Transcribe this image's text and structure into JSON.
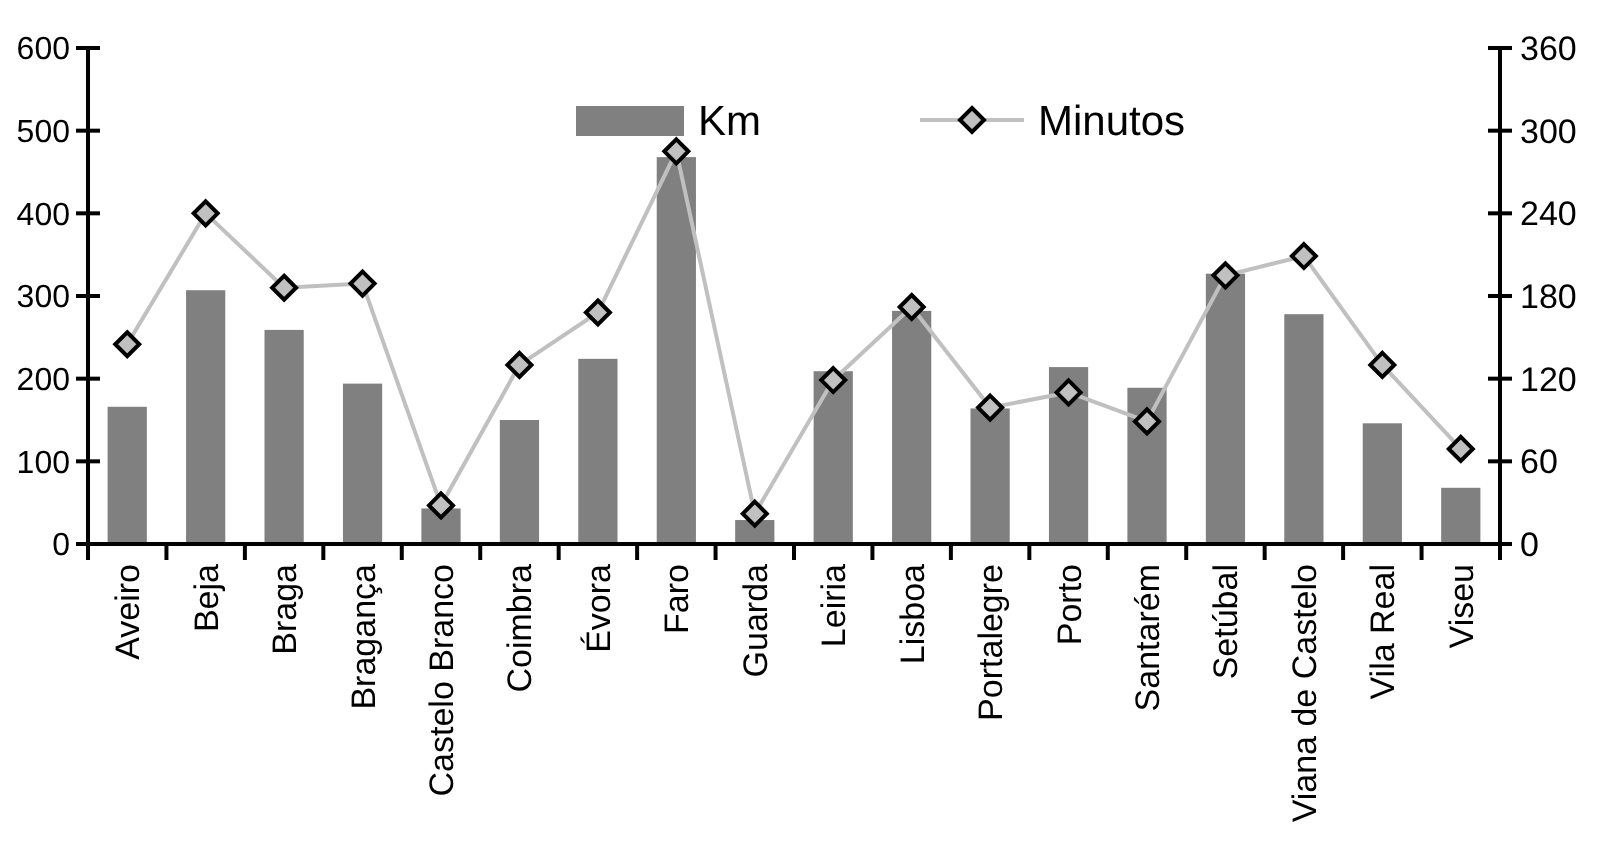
{
  "chart_data": {
    "type": "bar",
    "categories": [
      "Aveiro",
      "Beja",
      "Braga",
      "Bragança",
      "Castelo Branco",
      "Coimbra",
      "Évora",
      "Faro",
      "Guarda",
      "Leiria",
      "Lisboa",
      "Portalegre",
      "Porto",
      "Santarém",
      "Setúbal",
      "Viana de Castelo",
      "Vila Real",
      "Viseu"
    ],
    "series": [
      {
        "name": "Km",
        "color": "#808080",
        "values": [
          166,
          307,
          259,
          194,
          43,
          150,
          224,
          468,
          29,
          209,
          282,
          164,
          214,
          189,
          327,
          278,
          146,
          68
        ]
      },
      {
        "name": "Minutos",
        "color": "#c0c0c0",
        "type": "line",
        "axis": "y2",
        "marker": "diamond",
        "values": [
          145,
          240,
          186,
          189,
          28,
          130,
          168,
          285,
          22,
          119,
          172,
          99,
          110,
          89,
          195,
          209,
          130,
          69
        ]
      }
    ],
    "ylim": [
      0,
      600
    ],
    "yticks": [
      0,
      100,
      200,
      300,
      400,
      500,
      600
    ],
    "y2lim": [
      0,
      360
    ],
    "y2ticks": [
      0,
      60,
      120,
      180,
      240,
      300,
      360
    ],
    "legend": "top",
    "grid": false
  }
}
